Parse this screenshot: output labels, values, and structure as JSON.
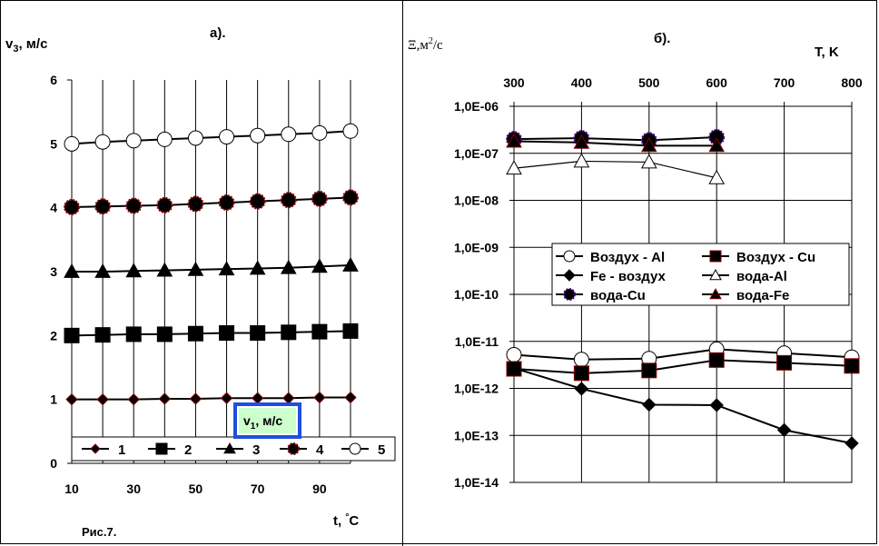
{
  "figure": {
    "caption": "Рис.7."
  },
  "chart_data": [
    {
      "panel": "а).",
      "type": "line",
      "ylabel": "v₃, м/с",
      "xlabel": "t, °C",
      "annotation": "v₁, м/с",
      "x": [
        10,
        20,
        30,
        40,
        50,
        60,
        70,
        80,
        90,
        100
      ],
      "x_tick_labels": [
        "10",
        "30",
        "50",
        "70",
        "90"
      ],
      "xlim": [
        10,
        100
      ],
      "ylim": [
        0,
        6
      ],
      "y_ticks": [
        "0",
        "1",
        "2",
        "3",
        "4",
        "5",
        "6"
      ],
      "grid": "vertical",
      "legend_position": "bottom",
      "series": [
        {
          "name": "1",
          "marker": "diamond",
          "color": "#8B0000",
          "values": [
            1.0,
            1.0,
            1.0,
            1.01,
            1.01,
            1.02,
            1.02,
            1.02,
            1.03,
            1.03
          ]
        },
        {
          "name": "2",
          "marker": "square",
          "color": "#000000",
          "values": [
            2.0,
            2.01,
            2.02,
            2.02,
            2.03,
            2.04,
            2.04,
            2.05,
            2.06,
            2.07
          ]
        },
        {
          "name": "3",
          "marker": "triangle",
          "color": "#000000",
          "values": [
            3.0,
            3.0,
            3.01,
            3.02,
            3.03,
            3.04,
            3.05,
            3.06,
            3.08,
            3.1
          ]
        },
        {
          "name": "4",
          "marker": "circle-filled",
          "color": "#8B0000",
          "values": [
            4.01,
            4.02,
            4.03,
            4.04,
            4.06,
            4.08,
            4.1,
            4.12,
            4.14,
            4.16
          ]
        },
        {
          "name": "5",
          "marker": "circle-open",
          "color": "#000000",
          "values": [
            5.0,
            5.03,
            5.05,
            5.07,
            5.09,
            5.11,
            5.13,
            5.15,
            5.17,
            5.2
          ]
        }
      ]
    },
    {
      "panel": "б).",
      "type": "line",
      "ylabel": "Ξ,м²/с",
      "xlabel": "T, K",
      "x_axis_position": "top",
      "y_scale": "log",
      "xlim": [
        300,
        800
      ],
      "x_ticks": [
        "300",
        "400",
        "500",
        "600",
        "700",
        "800"
      ],
      "ylim": [
        1e-14,
        1e-06
      ],
      "y_ticks": [
        "1,0E-06",
        "1,0E-07",
        "1,0E-08",
        "1,0E-09",
        "1,0E-10",
        "1,0E-11",
        "1,0E-12",
        "1,0E-13",
        "1,0E-14"
      ],
      "grid": "both",
      "legend_position": "center",
      "series": [
        {
          "name": "Воздух - Al",
          "marker": "circle-open",
          "color": "#000000",
          "x": [
            300,
            400,
            500,
            600,
            700,
            800
          ],
          "values": [
            5.2e-12,
            4.1e-12,
            4.3e-12,
            6.8e-12,
            5.6e-12,
            4.6e-12
          ]
        },
        {
          "name": "Воздух - Cu",
          "marker": "square",
          "color": "#8B0000",
          "x": [
            300,
            400,
            500,
            600,
            700,
            800
          ],
          "values": [
            2.6e-12,
            2.1e-12,
            2.4e-12,
            4e-12,
            3.5e-12,
            3e-12
          ]
        },
        {
          "name": "Fe - воздух",
          "marker": "diamond",
          "color": "#000000",
          "x": [
            300,
            400,
            500,
            600,
            700,
            800
          ],
          "values": [
            2.7e-12,
            9.8e-13,
            4.5e-13,
            4.4e-13,
            1.3e-13,
            6.8e-14
          ]
        },
        {
          "name": "вода-Al",
          "marker": "triangle-open",
          "color": "#000000",
          "x": [
            300,
            400,
            500,
            600
          ],
          "values": [
            4.8e-08,
            6.8e-08,
            6.5e-08,
            3e-08
          ]
        },
        {
          "name": "вода-Cu",
          "marker": "circle-filled",
          "color": "#4B0082",
          "x": [
            300,
            400,
            500,
            600
          ],
          "values": [
            2e-07,
            2.1e-07,
            1.9e-07,
            2.2e-07
          ]
        },
        {
          "name": "вода-Fe",
          "marker": "triangle",
          "color": "#8B0000",
          "x": [
            300,
            400,
            500,
            600
          ],
          "values": [
            1.8e-07,
            1.7e-07,
            1.45e-07,
            1.45e-07
          ]
        }
      ]
    }
  ]
}
